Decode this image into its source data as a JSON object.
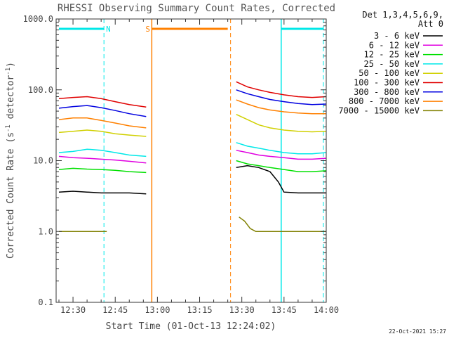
{
  "chart_data": {
    "type": "line",
    "title": "RHESSI Observing Summary Count Rates, Corrected",
    "xlabel": "Start Time (01-Oct-13 12:24:02)",
    "ylabel": "Corrected Count Rate (s⁻¹ detector⁻¹)",
    "ylabel_main": "Corrected Count Rate (s",
    "ylabel_sup1": "-1",
    "ylabel_mid": " detector",
    "ylabel_sup2": "-1",
    "ylabel_end": ")",
    "y_scale": "log",
    "xlim": [
      "12:24",
      "14:00"
    ],
    "ylim": [
      0.1,
      1000.0
    ],
    "x_ticks": [
      "12:30",
      "12:45",
      "13:00",
      "13:15",
      "13:30",
      "13:45",
      "14:00"
    ],
    "y_ticks": [
      "0.1",
      "1.0",
      "10.0",
      "100.0",
      "1000.0"
    ],
    "grid": false,
    "legend_position": "top-right, outside plot",
    "legend_header": [
      "Det 1,3,4,5,6,9,",
      "Att 0"
    ],
    "timestamp": "22-Oct-2021 15:27",
    "series": [
      {
        "name": "3 - 6 keV",
        "color": "#000000",
        "segments": [
          {
            "x": [
              "12:25",
              "12:30",
              "12:35",
              "12:40",
              "12:45",
              "12:50",
              "12:56"
            ],
            "y": [
              3.6,
              3.7,
              3.6,
              3.5,
              3.5,
              3.5,
              3.4
            ]
          },
          {
            "x": [
              "13:28",
              "13:32",
              "13:36",
              "13:40",
              "13:43",
              "13:45",
              "13:50",
              "13:55",
              "14:00"
            ],
            "y": [
              8.0,
              8.5,
              8.0,
              7.0,
              5.0,
              3.6,
              3.5,
              3.5,
              3.5
            ]
          }
        ]
      },
      {
        "name": "6 - 12 keV",
        "color": "#e000e0",
        "segments": [
          {
            "x": [
              "12:25",
              "12:30",
              "12:35",
              "12:40",
              "12:45",
              "12:50",
              "12:56"
            ],
            "y": [
              11.5,
              11.0,
              10.8,
              10.5,
              10.2,
              9.8,
              9.3
            ]
          },
          {
            "x": [
              "13:28",
              "13:32",
              "13:36",
              "13:40",
              "13:45",
              "13:50",
              "13:55",
              "14:00"
            ],
            "y": [
              14.0,
              13.0,
              12.0,
              11.5,
              11.0,
              10.5,
              10.5,
              10.8
            ]
          }
        ]
      },
      {
        "name": "12 - 25 keV",
        "color": "#00e000",
        "segments": [
          {
            "x": [
              "12:25",
              "12:30",
              "12:35",
              "12:40",
              "12:45",
              "12:50",
              "12:56"
            ],
            "y": [
              7.5,
              7.8,
              7.6,
              7.5,
              7.3,
              7.0,
              6.8
            ]
          },
          {
            "x": [
              "13:28",
              "13:32",
              "13:36",
              "13:40",
              "13:45",
              "13:50",
              "13:55",
              "14:00"
            ],
            "y": [
              10.0,
              9.0,
              8.5,
              8.0,
              7.5,
              7.0,
              7.0,
              7.2
            ]
          }
        ]
      },
      {
        "name": "25 - 50 keV",
        "color": "#00e8e8",
        "segments": [
          {
            "x": [
              "12:25",
              "12:30",
              "12:35",
              "12:40",
              "12:45",
              "12:50",
              "12:56"
            ],
            "y": [
              13.0,
              13.5,
              14.5,
              14.0,
              13.0,
              12.0,
              11.5
            ]
          },
          {
            "x": [
              "13:28",
              "13:32",
              "13:36",
              "13:40",
              "13:45",
              "13:50",
              "13:55",
              "14:00"
            ],
            "y": [
              18.0,
              16.0,
              15.0,
              14.0,
              13.0,
              12.5,
              12.5,
              13.0
            ]
          }
        ]
      },
      {
        "name": "50 - 100 keV",
        "color": "#d0d000",
        "segments": [
          {
            "x": [
              "12:25",
              "12:30",
              "12:35",
              "12:40",
              "12:45",
              "12:50",
              "12:56"
            ],
            "y": [
              25.0,
              26.0,
              27.0,
              26.0,
              24.0,
              23.0,
              22.0
            ]
          },
          {
            "x": [
              "13:28",
              "13:32",
              "13:36",
              "13:40",
              "13:45",
              "13:50",
              "13:55",
              "14:00"
            ],
            "y": [
              45.0,
              38.0,
              32.0,
              29.0,
              27.0,
              26.0,
              25.5,
              26.0
            ]
          }
        ]
      },
      {
        "name": "100 - 300 keV",
        "color": "#e00000",
        "segments": [
          {
            "x": [
              "12:25",
              "12:30",
              "12:35",
              "12:40",
              "12:45",
              "12:50",
              "12:56"
            ],
            "y": [
              75.0,
              78.0,
              80.0,
              75.0,
              68.0,
              62.0,
              57.0
            ]
          },
          {
            "x": [
              "13:28",
              "13:32",
              "13:36",
              "13:40",
              "13:45",
              "13:50",
              "13:55",
              "14:00"
            ],
            "y": [
              130.0,
              110.0,
              100.0,
              92.0,
              85.0,
              80.0,
              78.0,
              80.0
            ]
          }
        ]
      },
      {
        "name": "300 - 800 keV",
        "color": "#0000e0",
        "segments": [
          {
            "x": [
              "12:25",
              "12:30",
              "12:35",
              "12:40",
              "12:45",
              "12:50",
              "12:56"
            ],
            "y": [
              55.0,
              58.0,
              60.0,
              56.0,
              51.0,
              46.0,
              42.0
            ]
          },
          {
            "x": [
              "13:28",
              "13:32",
              "13:36",
              "13:40",
              "13:45",
              "13:50",
              "13:55",
              "14:00"
            ],
            "y": [
              100.0,
              88.0,
              80.0,
              73.0,
              68.0,
              64.0,
              62.0,
              63.0
            ]
          }
        ]
      },
      {
        "name": "800 - 7000 keV",
        "color": "#ff8000",
        "segments": [
          {
            "x": [
              "12:25",
              "12:30",
              "12:35",
              "12:40",
              "12:45",
              "12:50",
              "12:56"
            ],
            "y": [
              38.0,
              40.0,
              40.0,
              37.0,
              34.0,
              31.0,
              29.0
            ]
          },
          {
            "x": [
              "13:28",
              "13:32",
              "13:36",
              "13:40",
              "13:45",
              "13:50",
              "13:55",
              "14:00"
            ],
            "y": [
              72.0,
              63.0,
              56.0,
              52.0,
              49.0,
              47.0,
              46.0,
              46.0
            ]
          }
        ]
      },
      {
        "name": "7000 - 15000 keV",
        "color": "#808000",
        "segments": [
          {
            "x": [
              "12:25",
              "12:30",
              "12:35",
              "12:40",
              "12:42"
            ],
            "y": [
              1.0,
              1.0,
              1.0,
              1.0,
              1.0
            ]
          },
          {
            "x": [
              "13:29",
              "13:31",
              "13:33",
              "13:35",
              "13:40",
              "13:45",
              "13:50",
              "13:55",
              "14:00"
            ],
            "y": [
              1.6,
              1.4,
              1.1,
              1.0,
              1.0,
              1.0,
              1.0,
              1.0,
              1.0
            ]
          }
        ]
      }
    ],
    "annotations": [
      {
        "label": "N",
        "color": "#00e8e8",
        "bar": [
          "12:25",
          "12:41"
        ],
        "lines": [
          "12:41"
        ]
      },
      {
        "label": "S",
        "color": "#ff8000",
        "bar": [
          "12:58",
          "13:25"
        ],
        "lines": [
          "12:58",
          "13:26"
        ]
      },
      {
        "label": "",
        "color": "#00e8e8",
        "bar": [
          "13:44",
          "13:59"
        ],
        "lines": [
          "13:44",
          "13:59"
        ]
      }
    ]
  }
}
